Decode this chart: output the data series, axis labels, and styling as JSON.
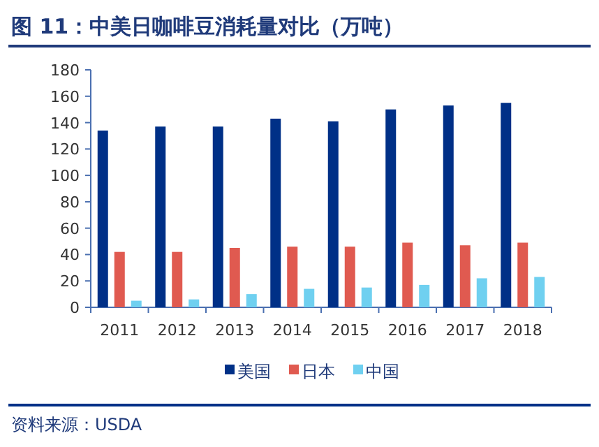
{
  "chart_data": {
    "type": "bar",
    "title": "图 11：中美日咖啡豆消耗量对比（万吨）",
    "categories": [
      "2011",
      "2012",
      "2013",
      "2014",
      "2015",
      "2016",
      "2017",
      "2018"
    ],
    "series": [
      {
        "name": "美国",
        "color": "#003087",
        "values": [
          134,
          137,
          137,
          143,
          141,
          150,
          153,
          155
        ]
      },
      {
        "name": "日本",
        "color": "#e05a50",
        "values": [
          42,
          42,
          45,
          46,
          46,
          49,
          47,
          49
        ]
      },
      {
        "name": "中国",
        "color": "#6fd0f0",
        "values": [
          5,
          6,
          10,
          14,
          15,
          17,
          22,
          23
        ]
      }
    ],
    "ylim": [
      0,
      180
    ],
    "yticks": [
      0,
      20,
      40,
      60,
      80,
      100,
      120,
      140,
      160,
      180
    ],
    "grid": false,
    "legend": "bottom",
    "annotations": [
      "资料来源：USDA"
    ]
  }
}
